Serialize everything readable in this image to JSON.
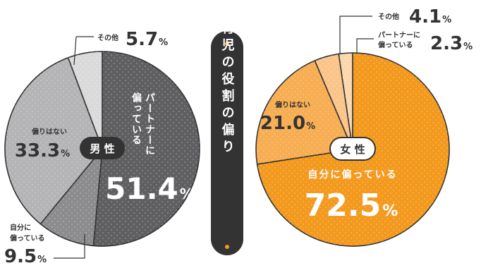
{
  "center_title": "家事・育児の役割の偏り",
  "chart_data": [
    {
      "type": "pie",
      "center_label": "男 性",
      "unit": "%",
      "slices": [
        {
          "label": "パートナーに偏っている",
          "value": 51.4,
          "color": "#5f5f62"
        },
        {
          "label": "自分に偏っている",
          "value": 9.5,
          "color": "#8c8c8f"
        },
        {
          "label": "偏りはない",
          "value": 33.3,
          "color": "#b4b4b7"
        },
        {
          "label": "その他",
          "value": 5.7,
          "color": "#dadadb"
        }
      ]
    },
    {
      "type": "pie",
      "center_label": "女 性",
      "unit": "%",
      "slices": [
        {
          "label": "自分に偏っている",
          "value": 72.5,
          "color": "#f39a1e"
        },
        {
          "label": "偏りはない",
          "value": 21.0,
          "color": "#f7ad52"
        },
        {
          "label": "その他",
          "value": 4.1,
          "color": "#fbc58a"
        },
        {
          "label": "パートナーに偏っている",
          "value": 2.3,
          "color": "#fbd7ad"
        }
      ]
    }
  ]
}
